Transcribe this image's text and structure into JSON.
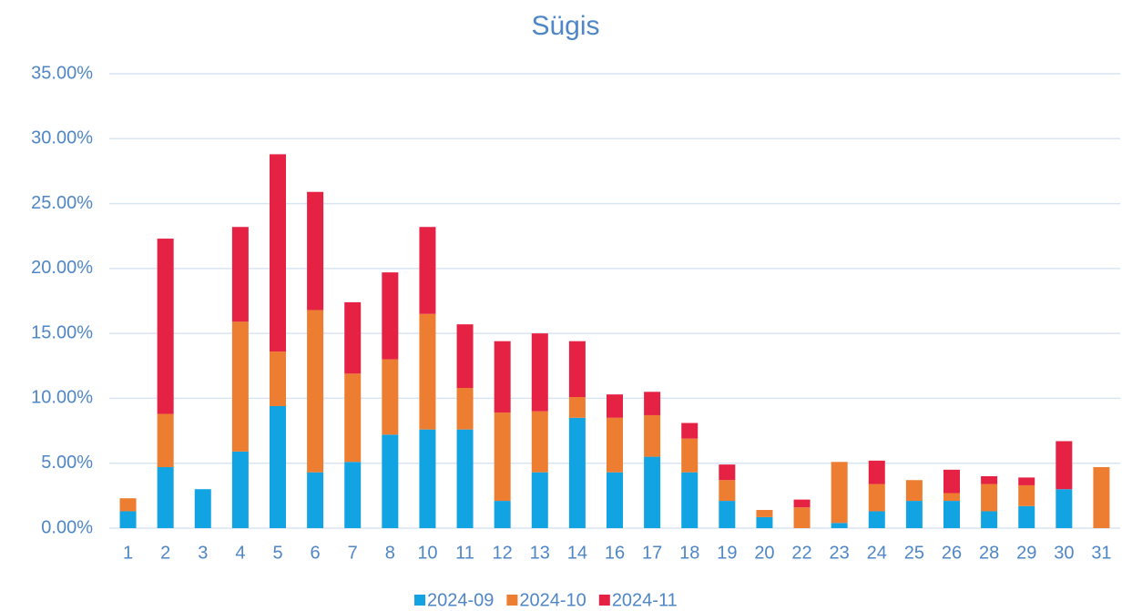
{
  "chart_data": {
    "type": "stacked_bar",
    "title": "Sügis",
    "categories": [
      "1",
      "2",
      "3",
      "4",
      "5",
      "6",
      "7",
      "8",
      "10",
      "11",
      "12",
      "13",
      "14",
      "16",
      "17",
      "18",
      "19",
      "20",
      "22",
      "23",
      "24",
      "25",
      "26",
      "28",
      "29",
      "30",
      "31"
    ],
    "series": [
      {
        "name": "2024-09",
        "color": "#12a3e3",
        "values": [
          1.3,
          4.7,
          3.0,
          5.9,
          9.4,
          4.3,
          5.1,
          7.2,
          7.6,
          7.6,
          2.1,
          4.3,
          8.5,
          4.3,
          5.5,
          4.3,
          2.1,
          0.85,
          0,
          0.4,
          1.3,
          2.1,
          2.1,
          1.3,
          1.7,
          3.0,
          0
        ]
      },
      {
        "name": "2024-10",
        "color": "#ed7d31",
        "values": [
          1.0,
          4.1,
          0,
          10.0,
          4.2,
          12.5,
          6.8,
          5.8,
          8.9,
          3.2,
          6.8,
          4.7,
          1.6,
          4.2,
          3.2,
          2.6,
          1.6,
          0.55,
          1.6,
          4.7,
          2.1,
          1.6,
          0.6,
          2.1,
          1.6,
          0,
          4.7
        ]
      },
      {
        "name": "2024-11",
        "color": "#e62244",
        "values": [
          0,
          13.5,
          0,
          7.3,
          15.2,
          9.1,
          5.5,
          6.7,
          6.7,
          4.9,
          5.5,
          6.0,
          4.3,
          1.8,
          1.8,
          1.2,
          1.2,
          0,
          0.6,
          0,
          1.8,
          0,
          1.8,
          0.6,
          0.6,
          3.7,
          0
        ]
      }
    ],
    "ylim": [
      0,
      35
    ],
    "yticks": [
      {
        "value": 0,
        "label": "0.00%"
      },
      {
        "value": 5,
        "label": "5.00%"
      },
      {
        "value": 10,
        "label": "10.00%"
      },
      {
        "value": 15,
        "label": "15.00%"
      },
      {
        "value": 20,
        "label": "20.00%"
      },
      {
        "value": 25,
        "label": "25.00%"
      },
      {
        "value": 30,
        "label": "30.00%"
      },
      {
        "value": 35,
        "label": "35.00%"
      }
    ],
    "grid": true,
    "legend": "bottom"
  }
}
